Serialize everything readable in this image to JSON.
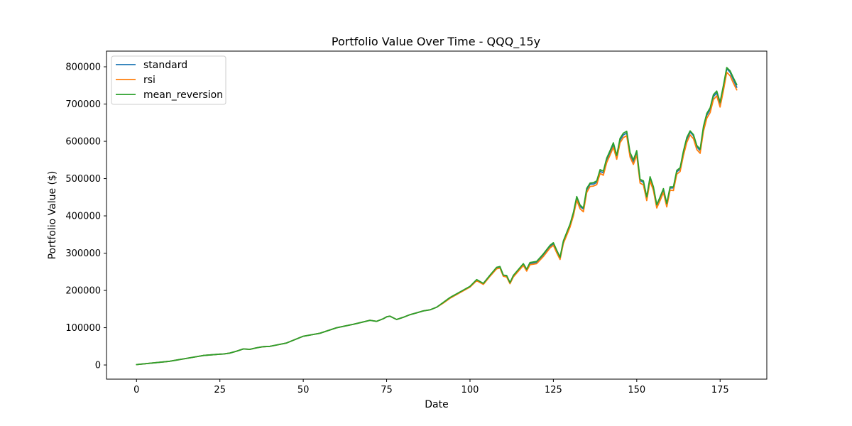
{
  "chart_data": {
    "type": "line",
    "title": "Portfolio Value Over Time - QQQ_15y",
    "xlabel": "Date",
    "ylabel": "Portfolio Value ($)",
    "xlim": [
      -9,
      189
    ],
    "ylim": [
      -38000,
      842000
    ],
    "xticks": [
      0,
      25,
      50,
      75,
      100,
      125,
      150,
      175
    ],
    "yticks": [
      0,
      100000,
      200000,
      300000,
      400000,
      500000,
      600000,
      700000,
      800000
    ],
    "grid": false,
    "legend_position": "upper left",
    "series": [
      {
        "name": "standard",
        "color": "#1f77b4",
        "x": [
          0,
          10,
          20,
          25,
          26,
          28,
          30,
          32,
          34,
          36,
          38,
          40,
          45,
          50,
          55,
          60,
          65,
          70,
          72,
          74,
          75,
          76,
          78,
          80,
          82,
          84,
          86,
          88,
          90,
          92,
          94,
          96,
          98,
          100,
          102,
          104,
          106,
          108,
          109,
          110,
          111,
          112,
          113,
          116,
          117,
          118,
          120,
          122,
          124,
          125,
          126,
          127,
          128,
          130,
          131,
          132,
          133,
          134,
          135,
          136,
          137,
          138,
          139,
          140,
          141,
          142,
          143,
          144,
          145,
          146,
          147,
          148,
          149,
          150,
          151,
          152,
          153,
          154,
          155,
          156,
          157,
          158,
          159,
          160,
          161,
          162,
          163,
          164,
          165,
          166,
          167,
          168,
          169,
          170,
          171,
          172,
          173,
          174,
          175,
          176,
          177,
          178,
          179,
          180
        ],
        "values": [
          1000,
          10000,
          25500,
          29000,
          29500,
          32000,
          37000,
          43000,
          42000,
          46000,
          49000,
          50000,
          59000,
          77000,
          85000,
          100000,
          109000,
          120000,
          117000,
          124000,
          129000,
          131000,
          122000,
          128000,
          135000,
          140000,
          145000,
          148000,
          155000,
          167000,
          180000,
          190000,
          200000,
          210000,
          228000,
          218000,
          240000,
          260000,
          263000,
          240000,
          238000,
          220000,
          238000,
          270000,
          255000,
          272000,
          275000,
          295000,
          318000,
          325000,
          305000,
          287000,
          330000,
          375000,
          405000,
          448000,
          425000,
          418000,
          470000,
          485000,
          485000,
          490000,
          520000,
          515000,
          550000,
          570000,
          592000,
          558000,
          603000,
          617000,
          622000,
          565000,
          545000,
          570000,
          495000,
          490000,
          447000,
          502000,
          475000,
          427000,
          447000,
          470000,
          430000,
          475000,
          475000,
          518000,
          525000,
          570000,
          605000,
          625000,
          615000,
          585000,
          575000,
          635000,
          670000,
          685000,
          720000,
          730000,
          700000,
          745000,
          795000,
          785000,
          765000,
          745000
        ]
      },
      {
        "name": "rsi",
        "color": "#ff7f0e",
        "x": [
          0,
          10,
          20,
          25,
          26,
          28,
          30,
          32,
          34,
          36,
          38,
          40,
          45,
          50,
          55,
          60,
          65,
          70,
          72,
          74,
          75,
          76,
          78,
          80,
          82,
          84,
          86,
          88,
          90,
          92,
          94,
          96,
          98,
          100,
          102,
          104,
          106,
          108,
          109,
          110,
          111,
          112,
          113,
          116,
          117,
          118,
          120,
          122,
          124,
          125,
          126,
          127,
          128,
          130,
          131,
          132,
          133,
          134,
          135,
          136,
          137,
          138,
          139,
          140,
          141,
          142,
          143,
          144,
          145,
          146,
          147,
          148,
          149,
          150,
          151,
          152,
          153,
          154,
          155,
          156,
          157,
          158,
          159,
          160,
          161,
          162,
          163,
          164,
          165,
          166,
          167,
          168,
          169,
          170,
          171,
          172,
          173,
          174,
          175,
          176,
          177,
          178,
          179,
          180
        ],
        "values": [
          1000,
          10000,
          25500,
          29000,
          29500,
          32000,
          37000,
          43000,
          42000,
          46000,
          49000,
          50000,
          59000,
          77000,
          85000,
          100000,
          109000,
          120000,
          117000,
          124000,
          129000,
          131000,
          122000,
          128000,
          135000,
          140000,
          145000,
          148000,
          155000,
          166000,
          179000,
          189000,
          199000,
          209000,
          226000,
          216000,
          238000,
          258000,
          260000,
          238000,
          236000,
          218000,
          236000,
          267000,
          252000,
          269000,
          272000,
          291000,
          314000,
          321000,
          301000,
          283000,
          326000,
          370000,
          400000,
          442000,
          419000,
          411000,
          463000,
          479000,
          480000,
          484000,
          514000,
          509000,
          543000,
          563000,
          584000,
          552000,
          596000,
          610000,
          615000,
          558000,
          538000,
          563000,
          488000,
          483000,
          441000,
          494000,
          468000,
          421000,
          441000,
          463000,
          424000,
          469000,
          468000,
          512000,
          519000,
          562000,
          597000,
          617000,
          607000,
          578000,
          568000,
          627000,
          662000,
          677000,
          712000,
          722000,
          692000,
          736000,
          785000,
          776000,
          756000,
          738000
        ]
      },
      {
        "name": "mean_reversion",
        "color": "#2ca02c",
        "x": [
          0,
          10,
          20,
          25,
          26,
          28,
          30,
          32,
          34,
          36,
          38,
          40,
          45,
          50,
          55,
          60,
          65,
          70,
          72,
          74,
          75,
          76,
          78,
          80,
          82,
          84,
          86,
          88,
          90,
          92,
          94,
          96,
          98,
          100,
          102,
          104,
          106,
          108,
          109,
          110,
          111,
          112,
          113,
          116,
          117,
          118,
          120,
          122,
          124,
          125,
          126,
          127,
          128,
          130,
          131,
          132,
          133,
          134,
          135,
          136,
          137,
          138,
          139,
          140,
          141,
          142,
          143,
          144,
          145,
          146,
          147,
          148,
          149,
          150,
          151,
          152,
          153,
          154,
          155,
          156,
          157,
          158,
          159,
          160,
          161,
          162,
          163,
          164,
          165,
          166,
          167,
          168,
          169,
          170,
          171,
          172,
          173,
          174,
          175,
          176,
          177,
          178,
          179,
          180
        ],
        "values": [
          1000,
          10000,
          25500,
          29000,
          29500,
          32000,
          37000,
          43000,
          42000,
          46000,
          49000,
          50000,
          59000,
          77000,
          85000,
          100000,
          109000,
          120000,
          117000,
          124000,
          129000,
          131000,
          122000,
          128000,
          135000,
          140000,
          145000,
          148000,
          155000,
          168000,
          181000,
          191000,
          201000,
          211000,
          229000,
          219000,
          241000,
          262000,
          264000,
          241000,
          240000,
          221000,
          240000,
          272000,
          257000,
          275000,
          278000,
          298000,
          321000,
          328000,
          308000,
          289000,
          333000,
          378000,
          409000,
          452000,
          429000,
          421000,
          474000,
          488000,
          489000,
          494000,
          524000,
          520000,
          555000,
          575000,
          596000,
          562000,
          608000,
          622000,
          627000,
          570000,
          550000,
          575000,
          498000,
          494000,
          451000,
          505000,
          478000,
          430000,
          451000,
          473000,
          433000,
          478000,
          478000,
          522000,
          529000,
          574000,
          610000,
          628000,
          618000,
          589000,
          579000,
          640000,
          675000,
          690000,
          725000,
          735000,
          705000,
          750000,
          798000,
          789000,
          770000,
          752000
        ]
      }
    ]
  }
}
